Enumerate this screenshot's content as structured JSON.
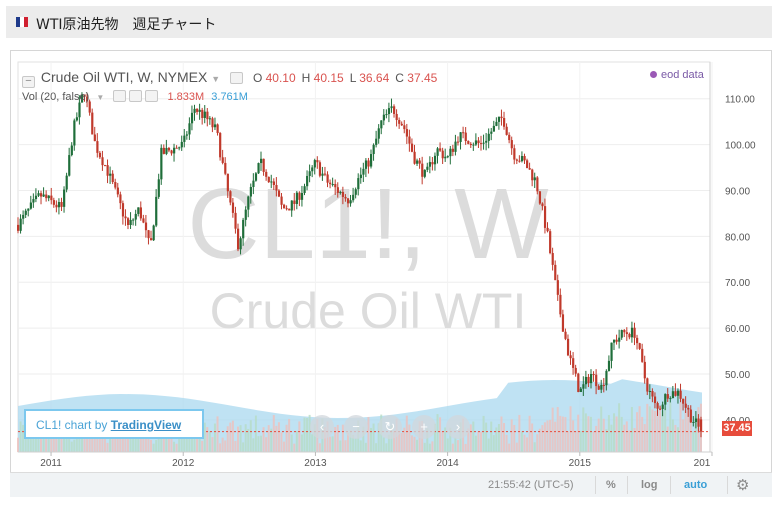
{
  "page": {
    "title": "WTI原油先物　週足チャート"
  },
  "legend": {
    "symbol_line": "Crude Oil WTI, W, NYMEX",
    "ohlc": [
      {
        "label": "O",
        "value": "40.10"
      },
      {
        "label": "H",
        "value": "40.15"
      },
      {
        "label": "L",
        "value": "36.64"
      },
      {
        "label": "C",
        "value": "37.45"
      }
    ],
    "volume_label": "Vol (20, false)",
    "volume_value": "1.833M",
    "volume_ma_value": "3.761M",
    "eod_label": "eod data"
  },
  "watermark": {
    "symbol": "CL1!, W",
    "name": "Crude Oil WTI"
  },
  "badge": {
    "prefix": "CL1! chart by",
    "link": "TradingView"
  },
  "bottom_bar": {
    "time": "21:55:42 (UTC-5)",
    "percent": "%",
    "log": "log",
    "auto": "auto"
  },
  "colors": {
    "up": "#1f6e3a",
    "down": "#c0392b",
    "volume": "#a9d8ef",
    "last_price": "#e74c3c",
    "accent": "#3a9fd6"
  },
  "icons": [
    "collapse-icon",
    "eye-icon",
    "gear-icon",
    "zoom-out-icon",
    "zoom-in-icon",
    "reset-icon",
    "scroll-left-icon",
    "scroll-right-icon"
  ],
  "chart_data": {
    "type": "candlestick",
    "x_tick_labels": [
      "2011",
      "2012",
      "2013",
      "2014",
      "2015",
      "201"
    ],
    "y_ticks": [
      40,
      50,
      60,
      70,
      80,
      90,
      100,
      110
    ],
    "y_tick_labels": [
      "40.00",
      "50.00",
      "60.00",
      "70.00",
      "80.00",
      "90.00",
      "100.00",
      "110.00"
    ],
    "ylim": [
      33,
      118
    ],
    "last_price": 37.45,
    "last_price_label": "37.45",
    "close_series": [
      {
        "x": "2010-10",
        "y": 82.5
      },
      {
        "x": "2010-12",
        "y": 89.0
      },
      {
        "x": "2011-02",
        "y": 86.0
      },
      {
        "x": "2011-03",
        "y": 103.0
      },
      {
        "x": "2011-04",
        "y": 112.0
      },
      {
        "x": "2011-05",
        "y": 100.0
      },
      {
        "x": "2011-06",
        "y": 95.0
      },
      {
        "x": "2011-08",
        "y": 82.0
      },
      {
        "x": "2011-09",
        "y": 86.0
      },
      {
        "x": "2011-10",
        "y": 77.0
      },
      {
        "x": "2011-11",
        "y": 98.0
      },
      {
        "x": "2011-12",
        "y": 99.0
      },
      {
        "x": "2012-01",
        "y": 100.0
      },
      {
        "x": "2012-02",
        "y": 108.0
      },
      {
        "x": "2012-03",
        "y": 106.0
      },
      {
        "x": "2012-04",
        "y": 103.0
      },
      {
        "x": "2012-05",
        "y": 90.0
      },
      {
        "x": "2012-06",
        "y": 78.0
      },
      {
        "x": "2012-07",
        "y": 89.0
      },
      {
        "x": "2012-08",
        "y": 96.0
      },
      {
        "x": "2012-09",
        "y": 92.0
      },
      {
        "x": "2012-10",
        "y": 86.0
      },
      {
        "x": "2012-11",
        "y": 87.0
      },
      {
        "x": "2012-12",
        "y": 91.0
      },
      {
        "x": "2013-01",
        "y": 96.0
      },
      {
        "x": "2013-02",
        "y": 92.0
      },
      {
        "x": "2013-04",
        "y": 88.0
      },
      {
        "x": "2013-05",
        "y": 93.0
      },
      {
        "x": "2013-06",
        "y": 97.0
      },
      {
        "x": "2013-07",
        "y": 105.0
      },
      {
        "x": "2013-08",
        "y": 108.0
      },
      {
        "x": "2013-09",
        "y": 104.0
      },
      {
        "x": "2013-10",
        "y": 97.0
      },
      {
        "x": "2013-11",
        "y": 93.0
      },
      {
        "x": "2013-12",
        "y": 99.0
      },
      {
        "x": "2014-01",
        "y": 97.0
      },
      {
        "x": "2014-02",
        "y": 102.0
      },
      {
        "x": "2014-03",
        "y": 101.0
      },
      {
        "x": "2014-04",
        "y": 100.0
      },
      {
        "x": "2014-05",
        "y": 103.0
      },
      {
        "x": "2014-06",
        "y": 106.0
      },
      {
        "x": "2014-07",
        "y": 98.0
      },
      {
        "x": "2014-08",
        "y": 96.0
      },
      {
        "x": "2014-09",
        "y": 92.0
      },
      {
        "x": "2014-10",
        "y": 81.0
      },
      {
        "x": "2014-11",
        "y": 66.0
      },
      {
        "x": "2014-12",
        "y": 54.0
      },
      {
        "x": "2015-01",
        "y": 46.0
      },
      {
        "x": "2015-02",
        "y": 50.0
      },
      {
        "x": "2015-03",
        "y": 47.0
      },
      {
        "x": "2015-04",
        "y": 57.0
      },
      {
        "x": "2015-05",
        "y": 59.0
      },
      {
        "x": "2015-06",
        "y": 59.0
      },
      {
        "x": "2015-07",
        "y": 48.0
      },
      {
        "x": "2015-08",
        "y": 42.0
      },
      {
        "x": "2015-09",
        "y": 46.0
      },
      {
        "x": "2015-10",
        "y": 46.0
      },
      {
        "x": "2015-11",
        "y": 41.0
      },
      {
        "x": "2015-12",
        "y": 37.45
      }
    ]
  }
}
